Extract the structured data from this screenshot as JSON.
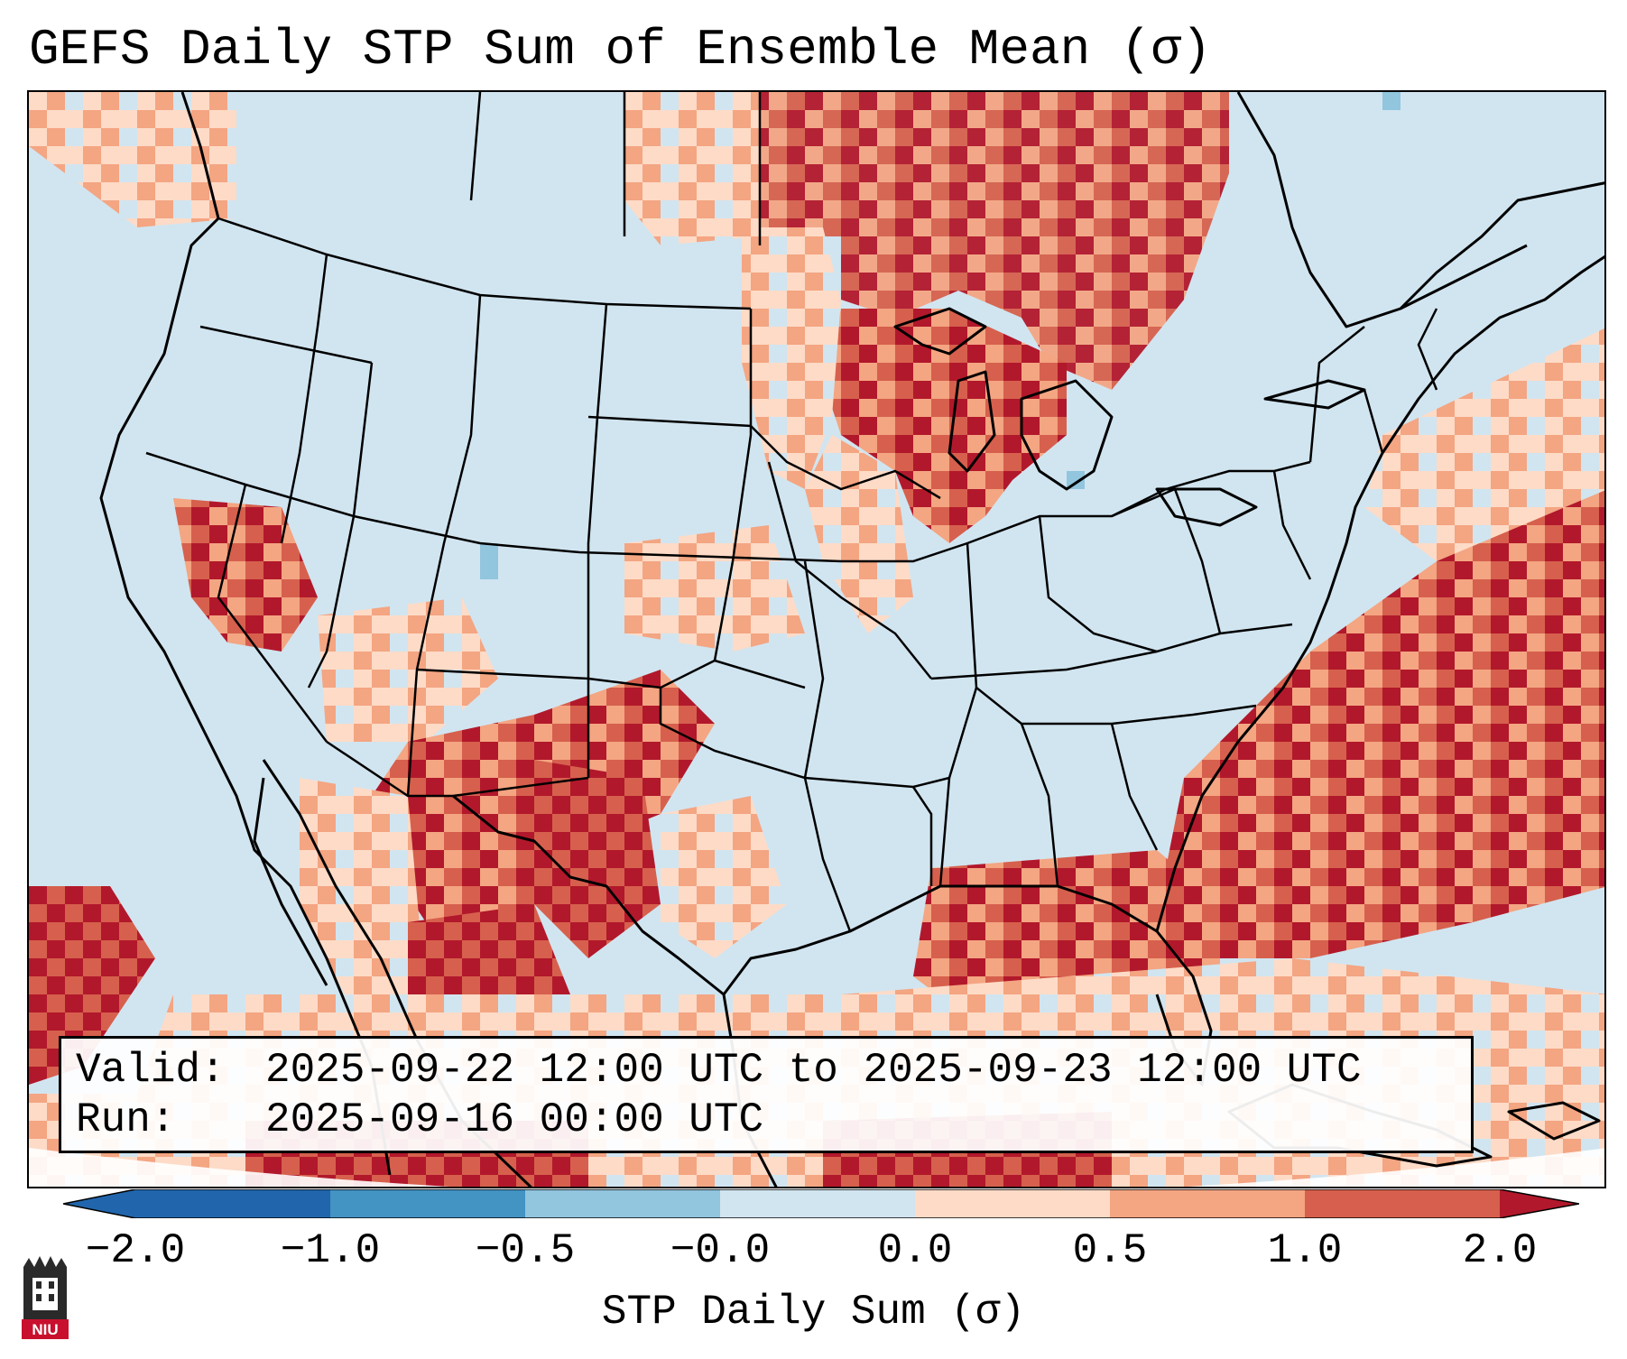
{
  "title": "GEFS Daily STP Sum of Ensemble Mean (σ)",
  "info": {
    "valid_label": "Valid:",
    "valid_value": "2025-09-22 12:00 UTC to 2025-09-23 12:00 UTC",
    "run_label": "Run:",
    "run_value": "2025-09-16 00:00 UTC"
  },
  "colorbar": {
    "label": "STP Daily Sum (σ)",
    "ticks": [
      "−2.0",
      "−1.0",
      "−0.5",
      "−0.0",
      "0.0",
      "0.5",
      "1.0",
      "2.0"
    ],
    "colors": [
      "#2166ac",
      "#4393c3",
      "#92c5de",
      "#d1e5f0",
      "#fddbc7",
      "#f4a582",
      "#d6604d",
      "#b2182b"
    ],
    "ocean_color": "#d1e5f0"
  },
  "logo": {
    "text": "NIU"
  },
  "icons": [
    "niu-logo-icon"
  ]
}
